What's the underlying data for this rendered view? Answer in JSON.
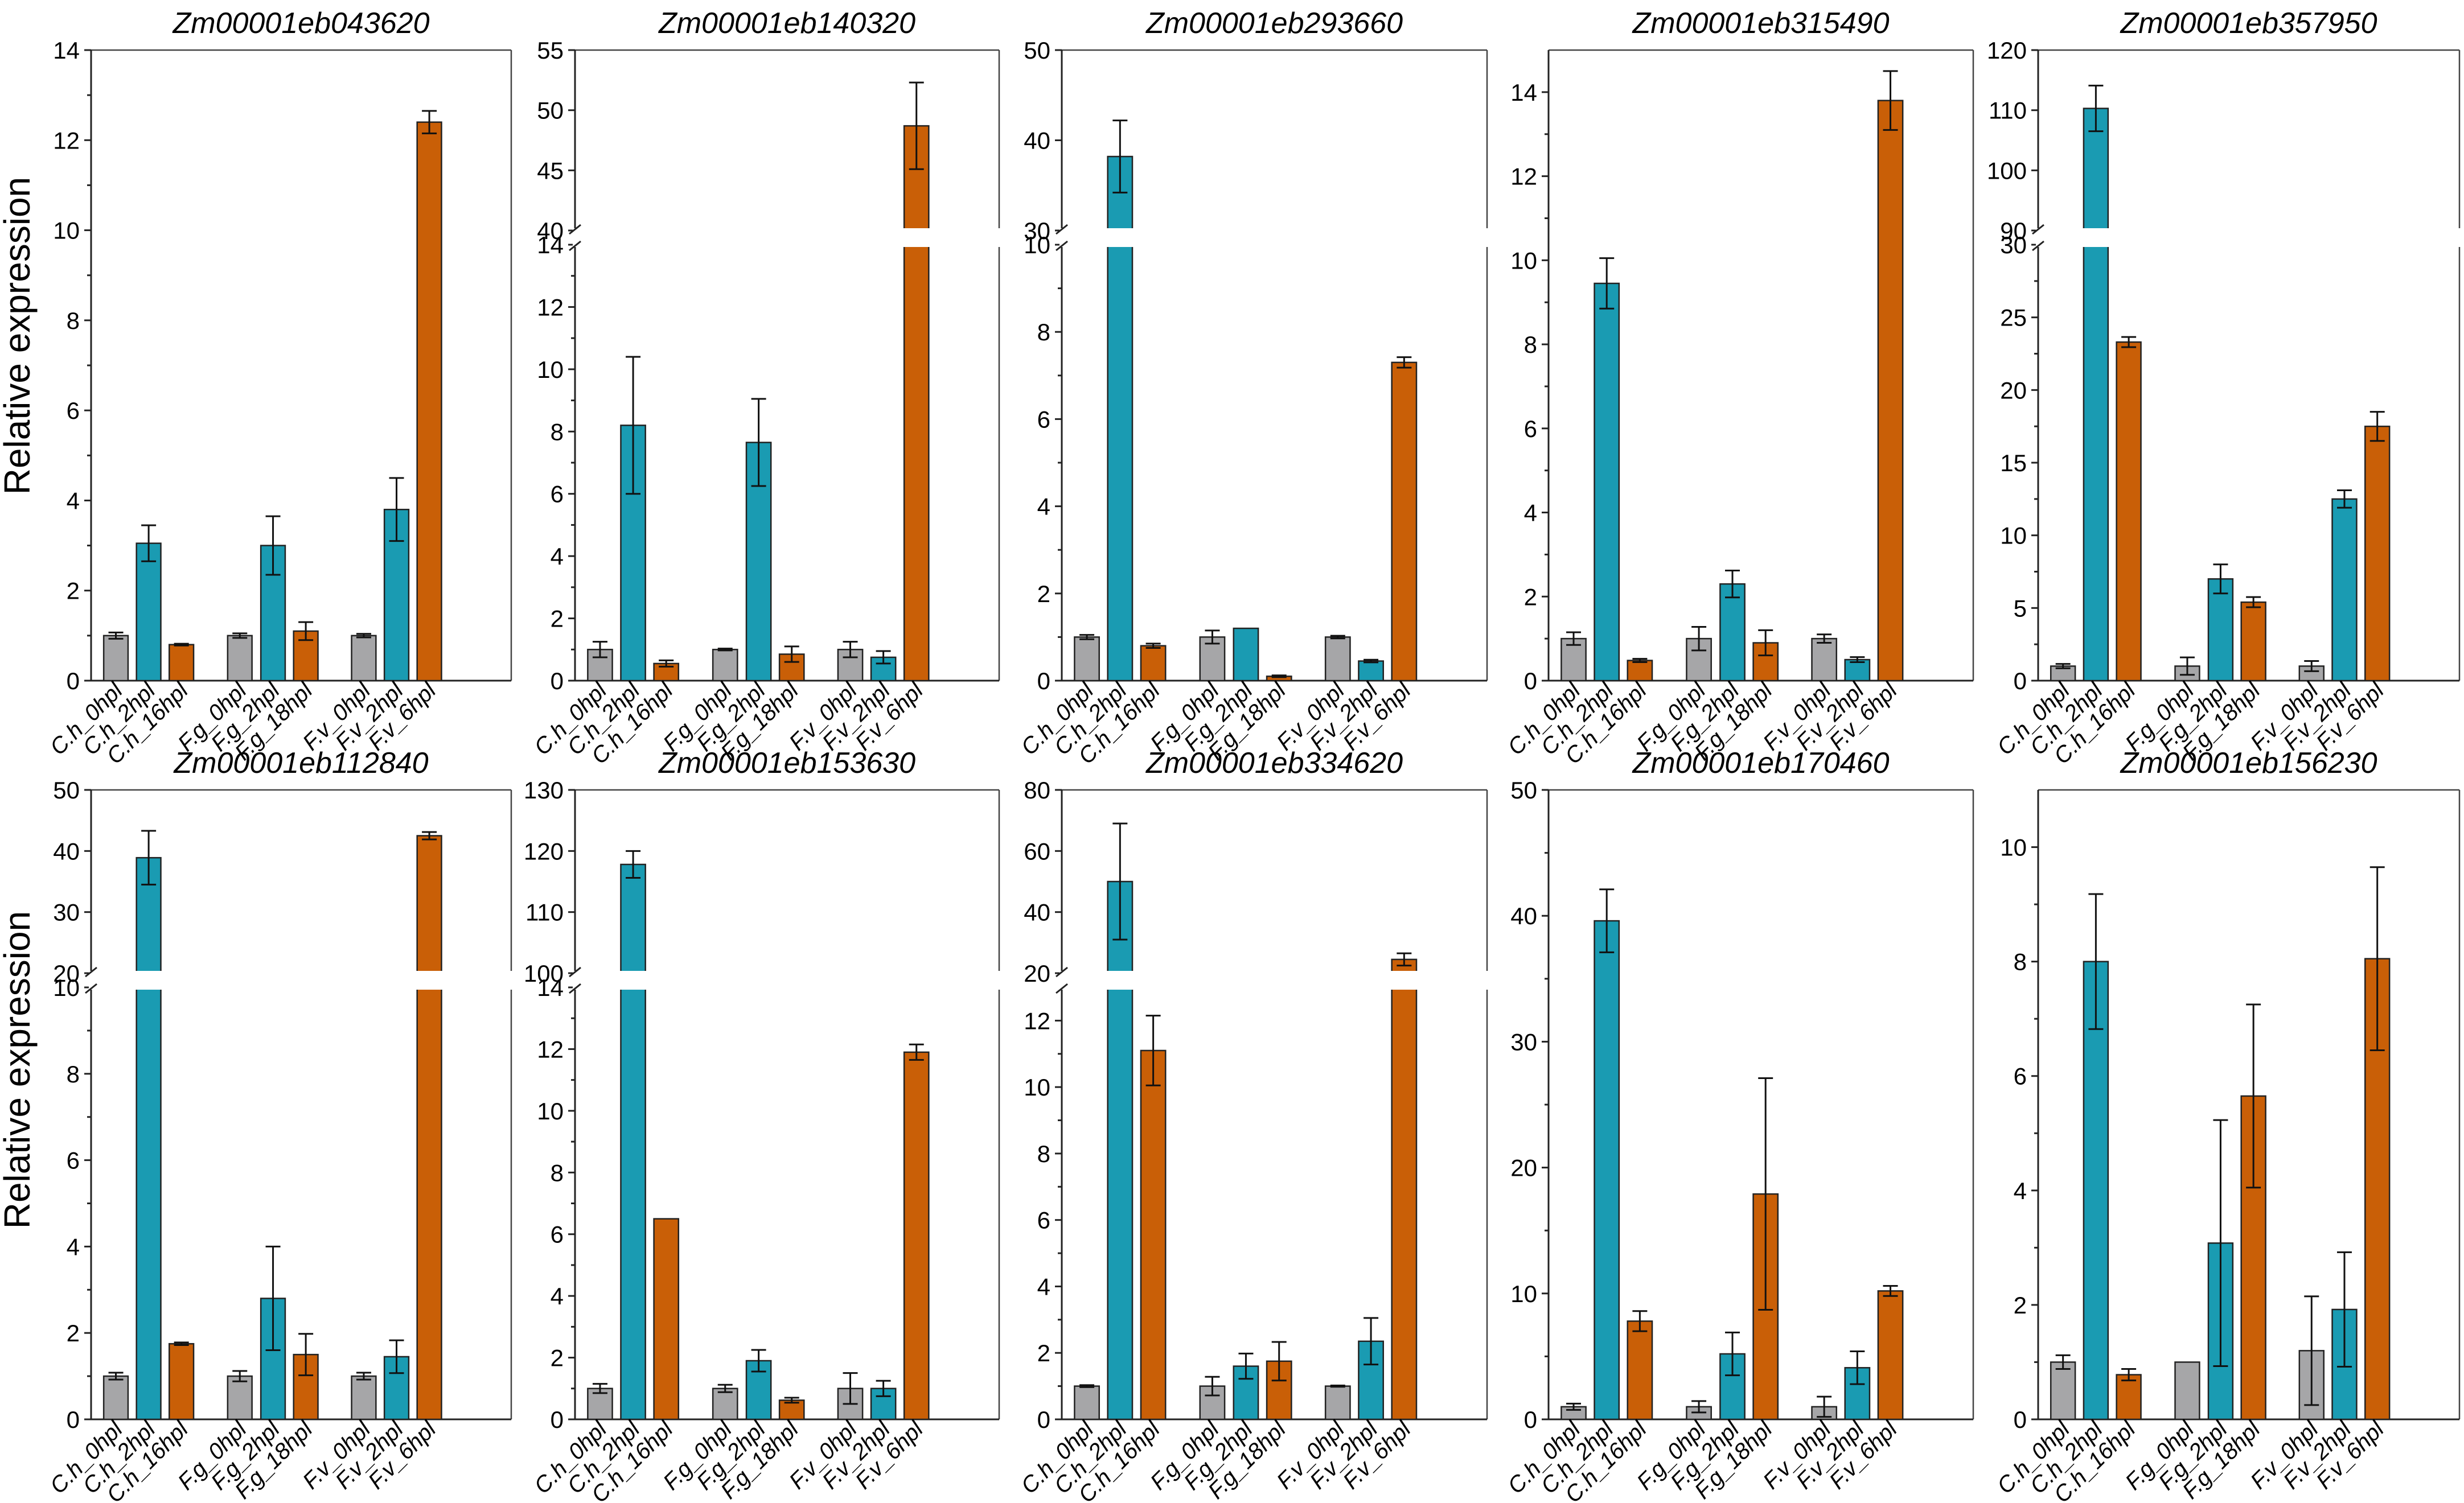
{
  "y_axis_label": "Relative expression",
  "colors": {
    "gray": "#a6a6a8",
    "blue": "#1a9bb2",
    "orange": "#c95f07"
  },
  "chart_data": [
    {
      "type": "bar",
      "title": "Zm00001eb043620",
      "ylabel": "Relative expression",
      "broken": false,
      "ylim": [
        0,
        14
      ],
      "yticks": [
        0,
        2,
        4,
        6,
        8,
        10,
        12,
        14
      ],
      "categories": [
        "C.h_0hpl",
        "C.h_2hpl",
        "C.h_16hpl",
        "F.g_0hpl",
        "F.g_2hpl",
        "F.g_18hpl",
        "F.v_0hpl",
        "F.v_2hpl",
        "F.v_6hpl"
      ],
      "values": [
        1.0,
        3.05,
        0.8,
        1.0,
        3.0,
        1.1,
        1.0,
        3.8,
        12.4
      ],
      "errors": [
        0.07,
        0.4,
        0.02,
        0.05,
        0.65,
        0.2,
        0.04,
        0.7,
        0.25
      ]
    },
    {
      "type": "bar",
      "title": "Zm00001eb140320",
      "ylabel": "Relative expression",
      "broken": true,
      "ylim": [
        0,
        14
      ],
      "upper_ylim": [
        40,
        55
      ],
      "yticks": [
        0,
        2,
        4,
        6,
        8,
        10,
        12,
        14
      ],
      "upper_yticks": [
        40,
        45,
        50,
        55
      ],
      "categories": [
        "C.h_0hpl",
        "C.h_2hpl",
        "C.h_16hpl",
        "F.g_0hpl",
        "F.g_2hpl",
        "F.g_18hpl",
        "F.v_0hpl",
        "F.v_2hpl",
        "F.v_6hpl"
      ],
      "values": [
        1.0,
        8.2,
        0.55,
        1.0,
        7.65,
        0.85,
        1.0,
        0.75,
        48.7
      ],
      "errors": [
        0.25,
        2.2,
        0.1,
        0.03,
        1.4,
        0.25,
        0.25,
        0.2,
        3.6
      ]
    },
    {
      "type": "bar",
      "title": "Zm00001eb293660",
      "ylabel": "Relative expression",
      "broken": true,
      "ylim": [
        0,
        10
      ],
      "upper_ylim": [
        30,
        50
      ],
      "yticks": [
        0,
        2,
        4,
        6,
        8,
        10
      ],
      "upper_yticks": [
        30,
        40,
        50
      ],
      "categories": [
        "C.h_0hpl",
        "C.h_2hpl",
        "C.h_16hpl",
        "F.g_0hpl",
        "F.g_2hpl",
        "F.g_18hpl",
        "F.v_0hpl",
        "F.v_2hpl",
        "F.v_6hpl"
      ],
      "values": [
        1.0,
        38.2,
        0.8,
        1.0,
        1.2,
        0.1,
        1.0,
        0.45,
        7.3
      ],
      "errors": [
        0.05,
        4.0,
        0.05,
        0.15,
        0.0,
        0.02,
        0.03,
        0.03,
        0.12
      ]
    },
    {
      "type": "bar",
      "title": "Zm00001eb315490",
      "ylabel": "Relative expression",
      "broken": false,
      "ylim": [
        0,
        15
      ],
      "yticks": [
        0,
        2,
        4,
        6,
        8,
        10,
        12,
        14
      ],
      "categories": [
        "C.h_0hpl",
        "C.h_2hpl",
        "C.h_16hpl",
        "F.g_0hpl",
        "F.g_2hpl",
        "F.g_18hpl",
        "F.v_0hpl",
        "F.v_2hpl",
        "F.v_6hpl"
      ],
      "values": [
        1.0,
        9.45,
        0.48,
        1.0,
        2.3,
        0.9,
        1.0,
        0.5,
        13.8
      ],
      "errors": [
        0.15,
        0.6,
        0.04,
        0.28,
        0.32,
        0.3,
        0.1,
        0.06,
        0.7
      ]
    },
    {
      "type": "bar",
      "title": "Zm00001eb357950",
      "ylabel": "Relative expression",
      "broken": true,
      "ylim": [
        0,
        30
      ],
      "upper_ylim": [
        90,
        120
      ],
      "yticks": [
        0,
        5,
        10,
        15,
        20,
        25,
        30
      ],
      "upper_yticks": [
        90,
        100,
        110,
        120
      ],
      "categories": [
        "C.h_0hpl",
        "C.h_2hpl",
        "C.h_16hpl",
        "F.g_0hpl",
        "F.g_2hpl",
        "F.g_18hpl",
        "F.v_0hpl",
        "F.v_2hpl",
        "F.v_6hpl"
      ],
      "values": [
        1.0,
        110.3,
        23.3,
        1.0,
        7.0,
        5.4,
        1.0,
        12.5,
        17.5
      ],
      "errors": [
        0.15,
        3.8,
        0.35,
        0.6,
        1.0,
        0.35,
        0.35,
        0.6,
        1.0
      ]
    },
    {
      "type": "bar",
      "title": "Zm00001eb112840",
      "ylabel": "Relative expression",
      "broken": true,
      "ylim": [
        0,
        10
      ],
      "upper_ylim": [
        20,
        50
      ],
      "yticks": [
        0,
        2,
        4,
        6,
        8,
        10
      ],
      "upper_yticks": [
        20,
        30,
        40,
        50
      ],
      "categories": [
        "C.h_0hpl",
        "C.h_2hpl",
        "C.h_16hpl",
        "F.g_0hpl",
        "F.g_2hpl",
        "F.g_18hpl",
        "F.v_0hpl",
        "F.v_2hpl",
        "F.v_6hpl"
      ],
      "values": [
        1.0,
        38.9,
        1.75,
        1.0,
        2.8,
        1.5,
        1.0,
        1.45,
        42.5
      ],
      "errors": [
        0.08,
        4.4,
        0.03,
        0.12,
        1.2,
        0.48,
        0.08,
        0.38,
        0.6
      ]
    },
    {
      "type": "bar",
      "title": "Zm00001eb153630",
      "ylabel": "Relative expression",
      "broken": true,
      "ylim": [
        0,
        14
      ],
      "upper_ylim": [
        100,
        130
      ],
      "yticks": [
        0,
        2,
        4,
        6,
        8,
        10,
        12,
        14
      ],
      "upper_yticks": [
        100,
        110,
        120,
        130
      ],
      "categories": [
        "C.h_0hpl",
        "C.h_2hpl",
        "C.h_16hpl",
        "F.g_0hpl",
        "F.g_2hpl",
        "F.g_18hpl",
        "F.v_0hpl",
        "F.v_2hpl",
        "F.v_6hpl"
      ],
      "values": [
        1.0,
        117.8,
        6.5,
        1.0,
        1.9,
        0.62,
        1.0,
        1.0,
        11.9
      ],
      "errors": [
        0.15,
        2.2,
        0.0,
        0.12,
        0.35,
        0.08,
        0.5,
        0.25,
        0.25
      ]
    },
    {
      "type": "bar",
      "title": "Zm00001eb334620",
      "ylabel": "Relative expression",
      "broken": true,
      "ylim": [
        0,
        13
      ],
      "upper_ylim": [
        20,
        80
      ],
      "yticks": [
        0,
        2,
        4,
        6,
        8,
        10,
        12
      ],
      "upper_yticks": [
        20,
        40,
        60,
        80
      ],
      "categories": [
        "C.h_0hpl",
        "C.h_2hpl",
        "C.h_16hpl",
        "F.g_0hpl",
        "F.g_2hpl",
        "F.g_18hpl",
        "F.v_0hpl",
        "F.v_2hpl",
        "F.v_6hpl"
      ],
      "values": [
        1.0,
        50.0,
        11.1,
        1.0,
        1.6,
        1.75,
        1.0,
        2.35,
        24.5
      ],
      "errors": [
        0.03,
        19.0,
        1.05,
        0.28,
        0.38,
        0.58,
        0.02,
        0.7,
        2.0
      ]
    },
    {
      "type": "bar",
      "title": "Zm00001eb170460",
      "ylabel": "Relative expression",
      "broken": false,
      "ylim": [
        0,
        50
      ],
      "yticks": [
        0,
        10,
        20,
        30,
        40,
        50
      ],
      "categories": [
        "C.h_0hpl",
        "C.h_2hpl",
        "C.h_16hpl",
        "F.g_0hpl",
        "F.g_2hpl",
        "F.g_18hpl",
        "F.v_0hpl",
        "F.v_2hpl",
        "F.v_6hpl"
      ],
      "values": [
        1.0,
        39.6,
        7.8,
        1.0,
        5.2,
        17.9,
        1.0,
        4.1,
        10.2
      ],
      "errors": [
        0.25,
        2.5,
        0.8,
        0.45,
        1.7,
        9.2,
        0.8,
        1.3,
        0.4
      ]
    },
    {
      "type": "bar",
      "title": "Zm00001eb156230",
      "ylabel": "Relative expression",
      "broken": false,
      "ylim": [
        0,
        11
      ],
      "yticks": [
        0,
        2,
        4,
        6,
        8,
        10
      ],
      "categories": [
        "C.h_0hpl",
        "C.h_2hpl",
        "C.h_16hpl",
        "F.g_0hpl",
        "F.g_2hpl",
        "F.g_18hpl",
        "F.v_0hpl",
        "F.v_2hpl",
        "F.v_6hpl"
      ],
      "values": [
        1.0,
        8.0,
        0.78,
        1.0,
        3.08,
        5.65,
        1.2,
        1.92,
        8.05
      ],
      "errors": [
        0.12,
        1.18,
        0.1,
        0.0,
        2.15,
        1.6,
        0.95,
        1.0,
        1.6
      ]
    }
  ]
}
